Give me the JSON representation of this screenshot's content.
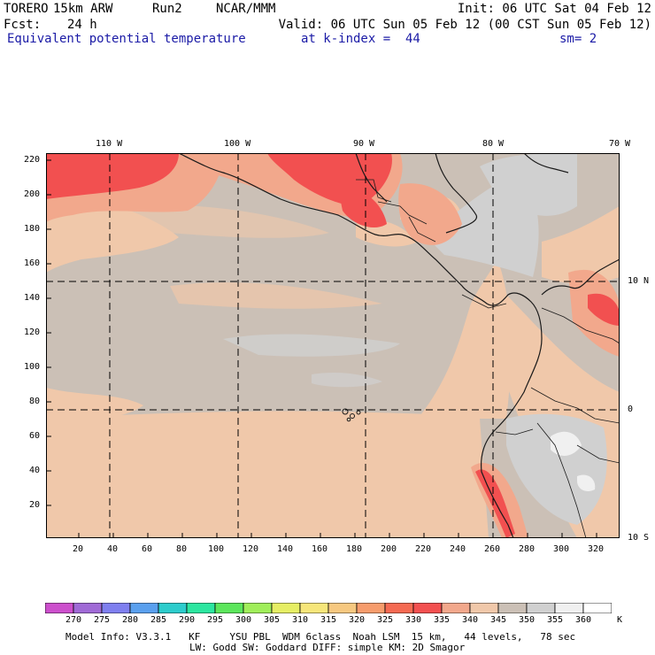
{
  "header": {
    "model": "TORERO",
    "resolution": "15km ARW",
    "run": "Run2",
    "org": "NCAR/MMM",
    "init": "Init: 06 UTC Sat 04 Feb 12",
    "fcst_label": "Fcst:",
    "fcst_hours": "24 h",
    "valid": "Valid: 06 UTC Sun 05 Feb 12 (00 CST Sun 05 Feb 12)",
    "field": "Equivalent potential temperature",
    "level": "at k-index =  44",
    "smoothing": "sm= 2"
  },
  "map": {
    "lon_labels": [
      "110 W",
      "100 W",
      "90 W",
      "80 W",
      "70 W"
    ],
    "lat_labels": [
      "10 N",
      "0",
      "10 S"
    ],
    "y_ticks": [
      "220",
      "200",
      "180",
      "160",
      "140",
      "120",
      "100",
      "80",
      "60",
      "40",
      "20"
    ],
    "x_ticks": [
      "20",
      "40",
      "60",
      "80",
      "100",
      "120",
      "140",
      "160",
      "180",
      "200",
      "220",
      "240",
      "260",
      "280",
      "300",
      "320"
    ],
    "background_value": 345
  },
  "colorbar": {
    "unit": "K",
    "levels": [
      "270",
      "275",
      "280",
      "285",
      "290",
      "295",
      "300",
      "305",
      "310",
      "315",
      "320",
      "325",
      "330",
      "335",
      "340",
      "345",
      "350",
      "355",
      "360"
    ],
    "colors": [
      "#cc4fcc",
      "#a06ad6",
      "#7f7fef",
      "#5aa0ee",
      "#2ccccc",
      "#2ce6a0",
      "#5ce65c",
      "#a0ee5a",
      "#e6ee64",
      "#f6e67a",
      "#f6c880",
      "#f69c6c",
      "#f46a52",
      "#f25050",
      "#f2a88c",
      "#f0c8aa",
      "#cbc0b6",
      "#d0d0d0",
      "#f0f0f0",
      "#ffffff"
    ]
  },
  "footer": {
    "line1": "Model Info: V3.3.1   KF     YSU PBL  WDM 6class  Noah LSM  15 km,   44 levels,   78 sec",
    "line2": "LW: Godd SW: Goddard DIFF: simple KM: 2D Smagor"
  }
}
